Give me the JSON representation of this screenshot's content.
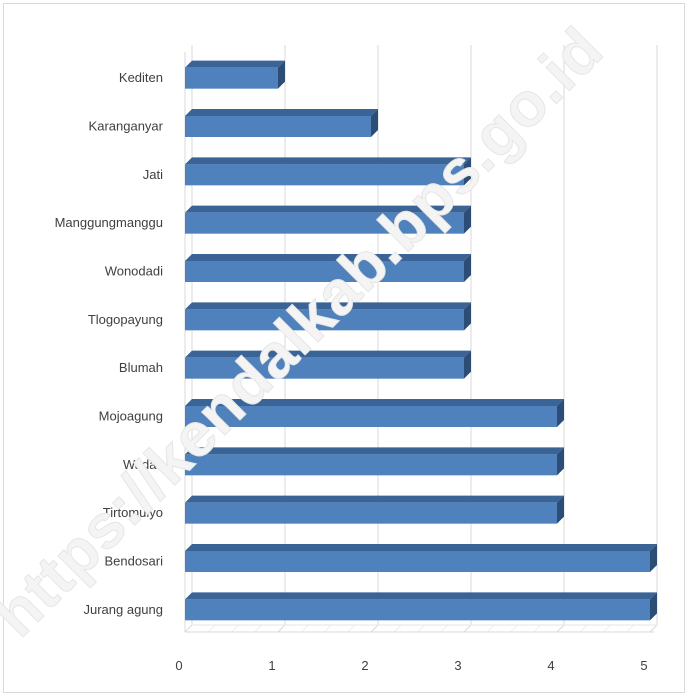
{
  "watermark": "https://kendalkab.bps.go.id",
  "chart_data": {
    "type": "bar",
    "orientation": "horizontal",
    "categories": [
      "Kediten",
      "Karanganyar",
      "Jati",
      "Manggungmanggu",
      "Wonodadi",
      "Tlogopayung",
      "Blumah",
      "Mojoagung",
      "Wadas",
      "Tirtomulyo",
      "Bendosari",
      "Jurang agung"
    ],
    "values": [
      1,
      2,
      3,
      3,
      3,
      3,
      3,
      4,
      4,
      4,
      5,
      5
    ],
    "xlim": [
      0,
      5
    ],
    "x_ticks": [
      "0",
      "1",
      "2",
      "3",
      "4",
      "5"
    ],
    "grid": true,
    "style": "3d",
    "bar_color": "#4f81bd"
  }
}
